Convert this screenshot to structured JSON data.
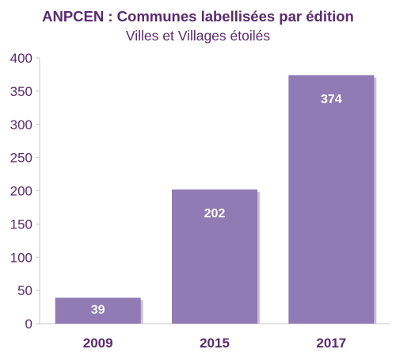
{
  "chart_data": {
    "type": "bar",
    "title": "ANPCEN : Communes labellisées par édition",
    "subtitle": "Villes et Villages étoilés",
    "categories": [
      "2009",
      "2015",
      "2017"
    ],
    "values": [
      39,
      202,
      374
    ],
    "data_labels": [
      "39",
      "202",
      "374"
    ],
    "ylim": [
      0,
      400
    ],
    "yticks": [
      "0",
      "50",
      "100",
      "150",
      "200",
      "250",
      "300",
      "350",
      "400"
    ],
    "grid": false,
    "legend": "none",
    "colors": {
      "bar": "#907bb4",
      "bar_shadow": "#c9c2d6",
      "text": "#5b2a6e",
      "axis": "#c7c7c7",
      "data_label": "#ffffff"
    }
  }
}
